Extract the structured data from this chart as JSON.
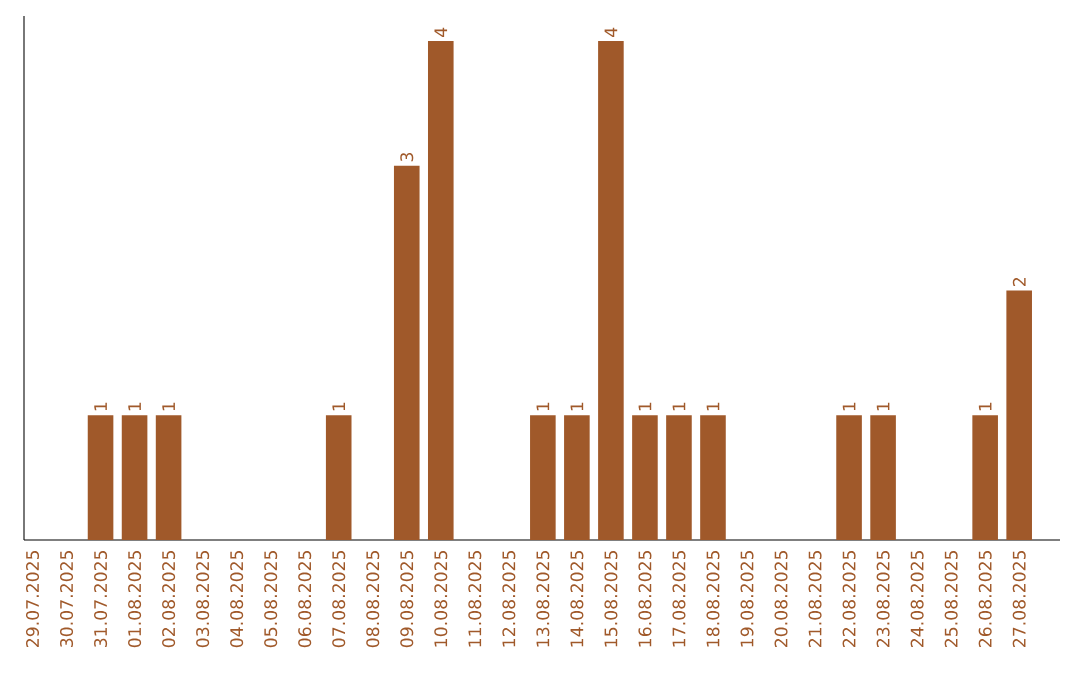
{
  "chart_data": {
    "type": "bar",
    "categories": [
      "29.07.2025",
      "30.07.2025",
      "31.07.2025",
      "01.08.2025",
      "02.08.2025",
      "03.08.2025",
      "04.08.2025",
      "05.08.2025",
      "06.08.2025",
      "07.08.2025",
      "08.08.2025",
      "09.08.2025",
      "10.08.2025",
      "11.08.2025",
      "12.08.2025",
      "13.08.2025",
      "14.08.2025",
      "15.08.2025",
      "16.08.2025",
      "17.08.2025",
      "18.08.2025",
      "19.08.2025",
      "20.08.2025",
      "21.08.2025",
      "22.08.2025",
      "23.08.2025",
      "24.08.2025",
      "25.08.2025",
      "26.08.2025",
      "27.08.2025"
    ],
    "values": [
      0,
      0,
      1,
      1,
      1,
      0,
      0,
      0,
      0,
      1,
      0,
      3,
      4,
      0,
      0,
      1,
      1,
      4,
      1,
      1,
      1,
      0,
      0,
      0,
      1,
      1,
      0,
      0,
      1,
      2
    ],
    "value_labels": [
      null,
      null,
      "1",
      "1",
      "1",
      null,
      null,
      null,
      null,
      "1",
      null,
      "3",
      "4",
      null,
      null,
      "1",
      "1",
      "4",
      "1",
      "1",
      "1",
      null,
      null,
      null,
      "1",
      "1",
      null,
      null,
      "1",
      "2"
    ],
    "color": "#a0592a",
    "ylim": [
      0,
      4.2
    ],
    "tick_labels": "x"
  }
}
